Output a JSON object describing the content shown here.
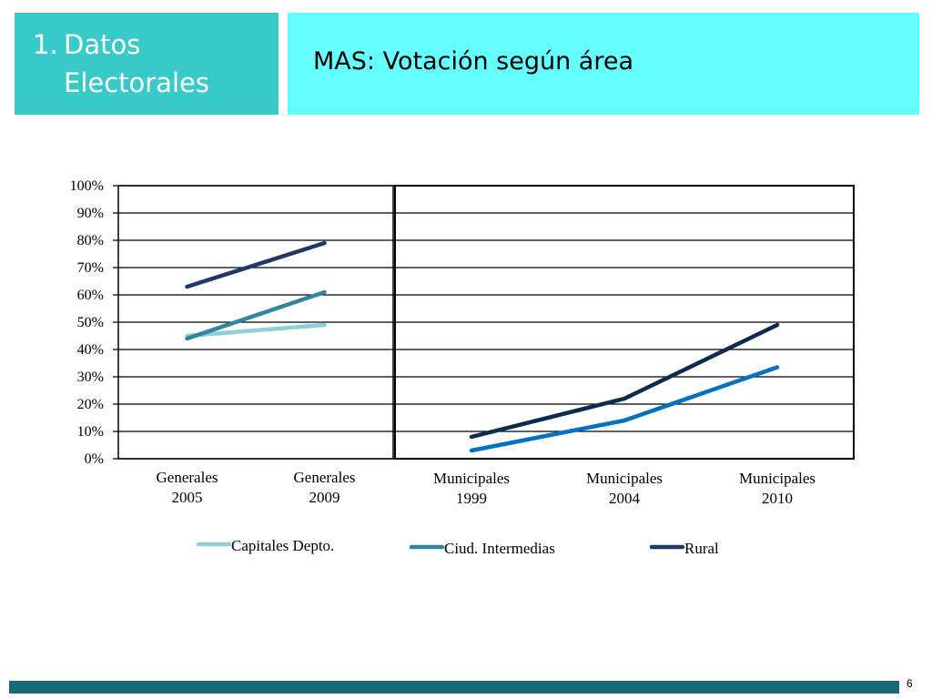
{
  "header": {
    "section_number": "1.",
    "section_line1": "Datos",
    "section_line2": "Electorales",
    "slide_title": "MAS: Votación según área"
  },
  "chart_data": {
    "type": "line",
    "title": "",
    "ylabel": "",
    "xlabel": "",
    "ylim": [
      0,
      100
    ],
    "y_ticks": [
      "0%",
      "10%",
      "20%",
      "30%",
      "40%",
      "50%",
      "60%",
      "70%",
      "80%",
      "90%",
      "100%"
    ],
    "grid": true,
    "legend_position": "bottom",
    "panels": [
      {
        "name": "generales",
        "categories": [
          [
            "Generales",
            "2005"
          ],
          [
            "Generales",
            "2009"
          ]
        ],
        "series": [
          {
            "name": "Capitales Depto.",
            "color": "#92cddc",
            "values": [
              45,
              49
            ]
          },
          {
            "name": "Ciud. Intermedias",
            "color": "#31859c",
            "values": [
              44,
              61
            ]
          },
          {
            "name": "Rural",
            "color": "#1f3864",
            "values": [
              63,
              79
            ]
          }
        ]
      },
      {
        "name": "municipales",
        "categories": [
          [
            "Municipales",
            "1999"
          ],
          [
            "Municipales",
            "2004"
          ],
          [
            "Municipales",
            "2010"
          ]
        ],
        "series": [
          {
            "name": "Ciud. Intermedias",
            "color": "#0070c0",
            "values": [
              3,
              14,
              33.5
            ]
          },
          {
            "name": "Rural",
            "color": "#0f2a4f",
            "values": [
              8,
              22,
              49
            ]
          }
        ]
      }
    ],
    "legend": [
      {
        "name": "Capitales Depto.",
        "color": "#92cddc"
      },
      {
        "name": "Ciud. Intermedias",
        "color": "#31859c"
      },
      {
        "name": "Rural",
        "color": "#1f3864"
      }
    ]
  },
  "footer": {
    "page_number": "6"
  }
}
